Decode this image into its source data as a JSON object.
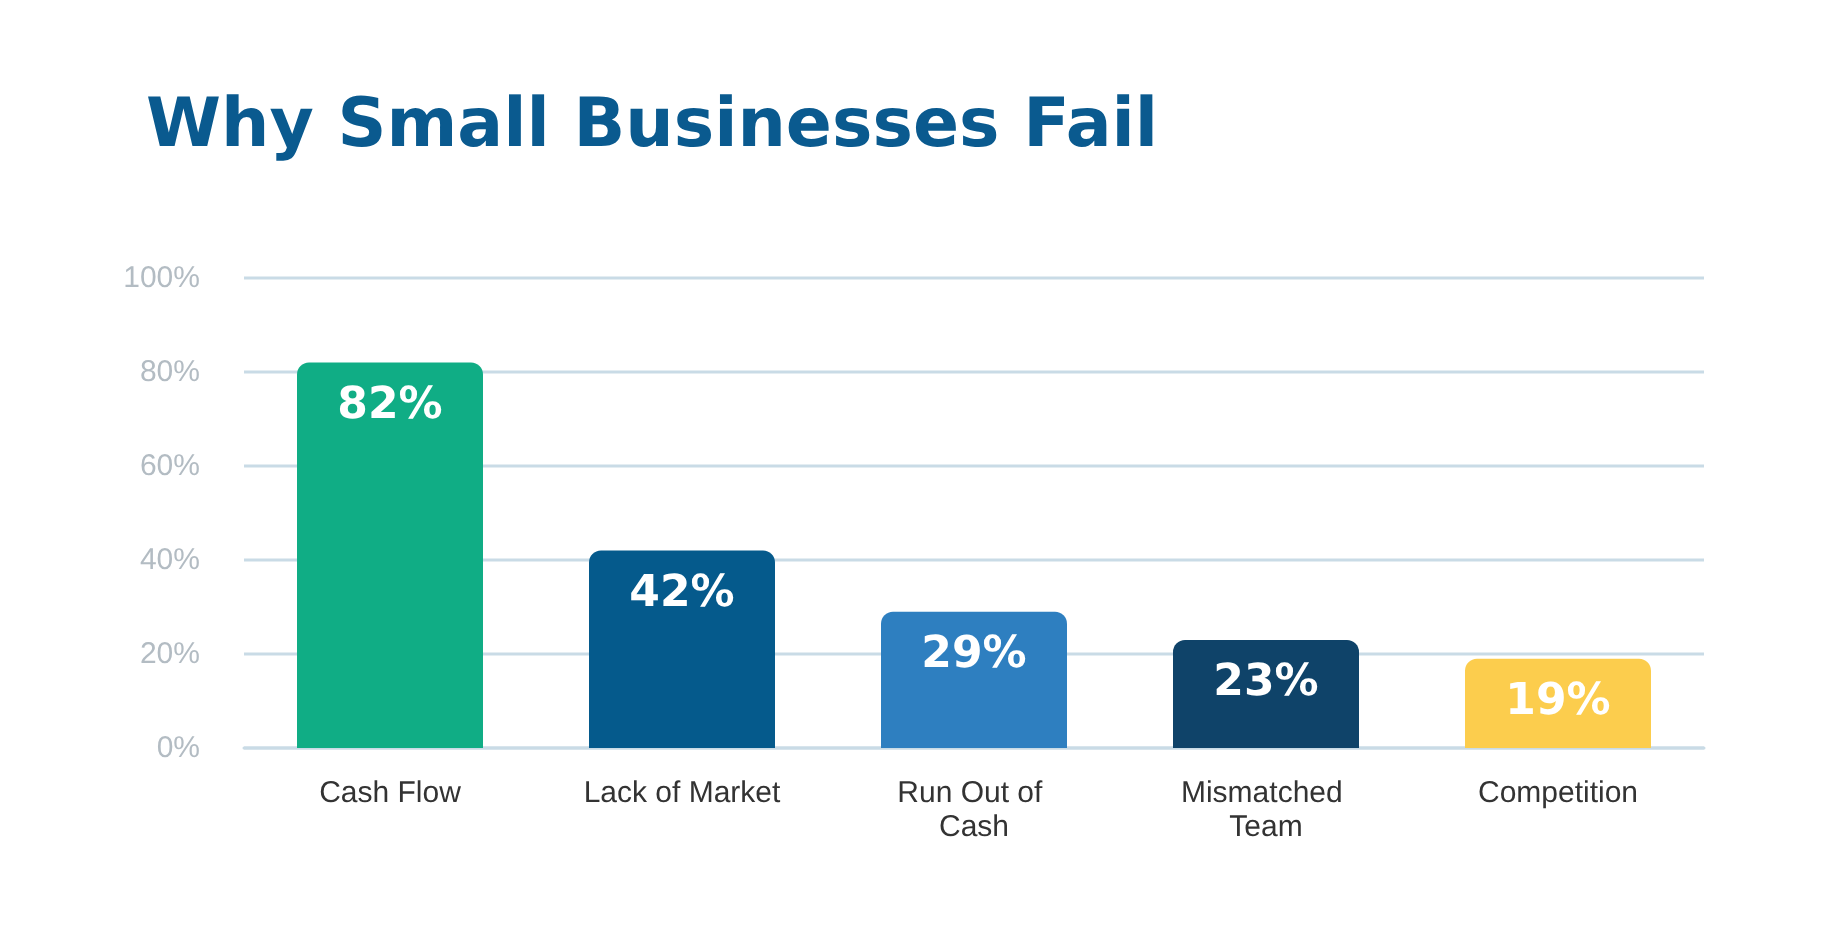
{
  "chart_data": {
    "type": "bar",
    "title": "Why Small Businesses Fail",
    "categories": [
      "Cash Flow",
      "Lack of Market",
      "Run Out of Cash",
      "Mismatched Team",
      "Competition"
    ],
    "values": [
      82,
      42,
      29,
      23,
      19
    ],
    "colors": [
      "#10ad85",
      "#055a8c",
      "#2e7fc0",
      "#0f4369",
      "#fccd4d"
    ],
    "value_labels": [
      "82%",
      "42%",
      "29%",
      "23%",
      "19%"
    ],
    "ylim": [
      0,
      100
    ],
    "yticks": [
      {
        "value": 0,
        "label": "0%"
      },
      {
        "value": 20,
        "label": "20%"
      },
      {
        "value": 40,
        "label": "40%"
      },
      {
        "value": 60,
        "label": "60%"
      },
      {
        "value": 80,
        "label": "80%"
      },
      {
        "value": 100,
        "label": "100%"
      }
    ],
    "grid": "y"
  }
}
